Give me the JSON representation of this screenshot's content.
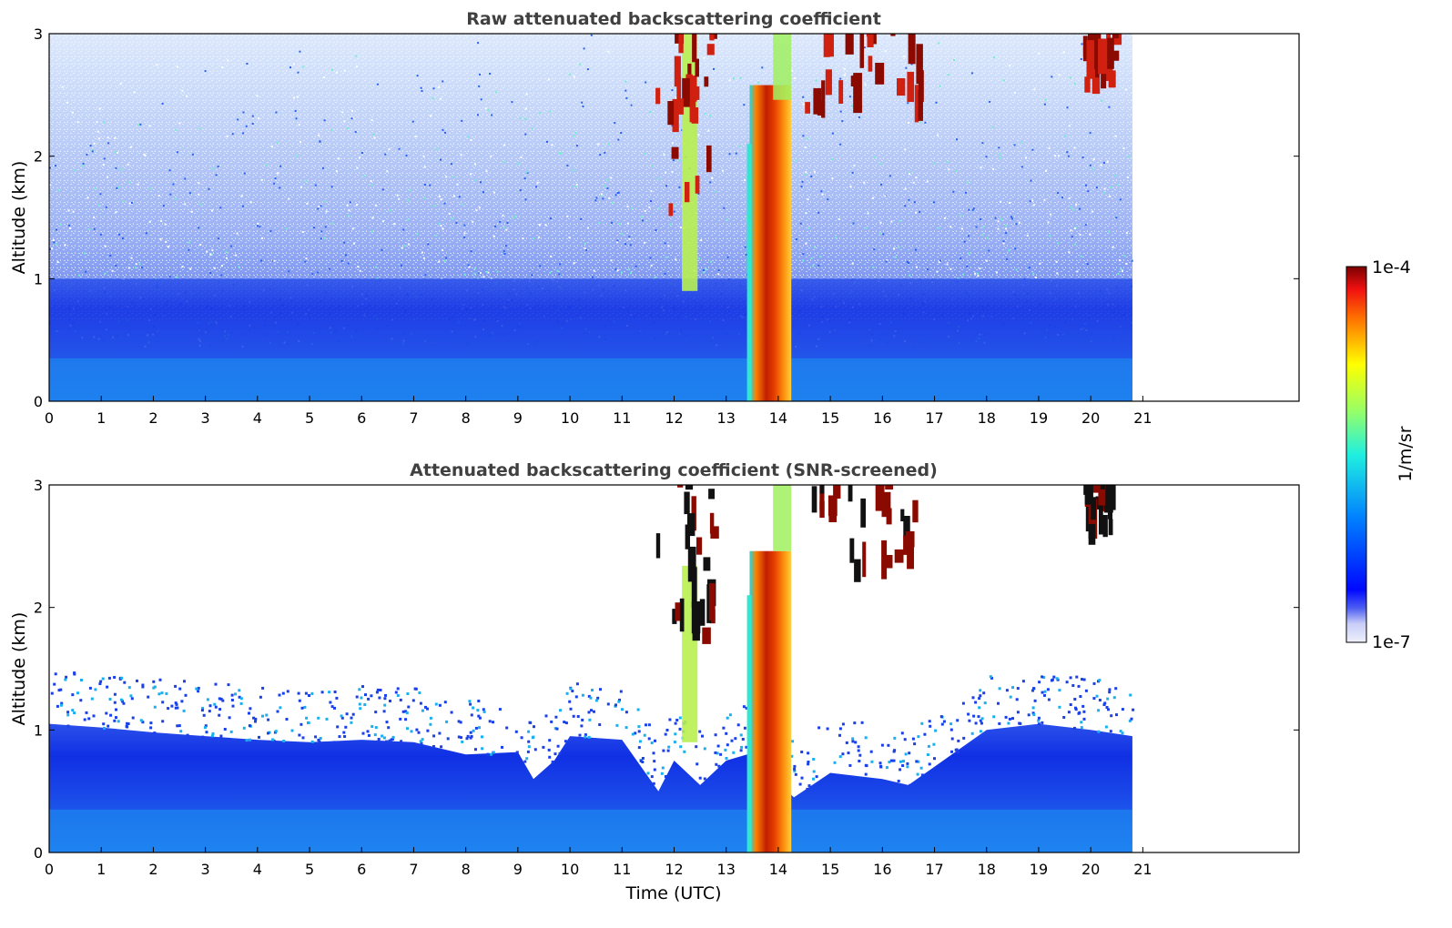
{
  "chart_data": [
    {
      "type": "heatmap",
      "title": "Raw attenuated backscattering coefficient",
      "xlabel": "",
      "ylabel": "Altitude (km)",
      "xlim": [
        0,
        24
      ],
      "ylim": [
        0,
        3
      ],
      "xticks": [
        "0",
        "1",
        "2",
        "3",
        "4",
        "5",
        "6",
        "7",
        "8",
        "9",
        "10",
        "11",
        "12",
        "13",
        "14",
        "15",
        "16",
        "17",
        "18",
        "19",
        "20",
        "21"
      ],
      "yticks": [
        "0",
        "1",
        "2",
        "3"
      ],
      "data_end_time": 20.8,
      "screened": false,
      "features": [
        {
          "kind": "cloud_column",
          "x_start": 13.45,
          "x_end": 14.25,
          "y_top": 3.0,
          "value": "high"
        },
        {
          "kind": "cloud_streak",
          "x_start": 12.15,
          "x_end": 12.45,
          "y_bottom": 0.9,
          "y_top": 3.0,
          "value": "medium"
        },
        {
          "kind": "cirrus",
          "x_start": 11.6,
          "x_end": 12.7,
          "y_bottom": 1.5,
          "y_top": 3.0,
          "value": "high"
        },
        {
          "kind": "cirrus",
          "x_start": 14.5,
          "x_end": 16.7,
          "y_bottom": 2.2,
          "y_top": 3.0,
          "value": "high"
        },
        {
          "kind": "cirrus",
          "x_start": 19.85,
          "x_end": 20.45,
          "y_bottom": 2.5,
          "y_top": 3.0,
          "value": "high"
        },
        {
          "kind": "boundary_layer",
          "x_start": 0,
          "x_end": 20.8,
          "y_top": 1.0,
          "value": "low"
        }
      ]
    },
    {
      "type": "heatmap",
      "title": "Attenuated backscattering coefficient (SNR-screened)",
      "xlabel": "Time (UTC)",
      "ylabel": "Altitude (km)",
      "xlim": [
        0,
        24
      ],
      "ylim": [
        0,
        3
      ],
      "xticks": [
        "0",
        "1",
        "2",
        "3",
        "4",
        "5",
        "6",
        "7",
        "8",
        "9",
        "10",
        "11",
        "12",
        "13",
        "14",
        "15",
        "16",
        "17",
        "18",
        "19",
        "20",
        "21"
      ],
      "yticks": [
        "0",
        "1",
        "2",
        "3"
      ],
      "data_end_time": 20.8,
      "screened": true,
      "bl_top": [
        [
          0,
          1.05
        ],
        [
          1,
          1.02
        ],
        [
          2,
          0.98
        ],
        [
          3,
          0.95
        ],
        [
          4,
          0.92
        ],
        [
          5,
          0.9
        ],
        [
          6,
          0.92
        ],
        [
          7,
          0.9
        ],
        [
          8,
          0.8
        ],
        [
          9,
          0.82
        ],
        [
          9.3,
          0.6
        ],
        [
          9.7,
          0.75
        ],
        [
          10,
          0.95
        ],
        [
          11,
          0.92
        ],
        [
          11.7,
          0.5
        ],
        [
          12,
          0.75
        ],
        [
          12.5,
          0.55
        ],
        [
          13,
          0.75
        ],
        [
          13.4,
          0.8
        ],
        [
          14.3,
          0.45
        ],
        [
          15,
          0.65
        ],
        [
          16,
          0.6
        ],
        [
          16.5,
          0.55
        ],
        [
          17,
          0.7
        ],
        [
          17.5,
          0.85
        ],
        [
          18,
          1.0
        ],
        [
          19,
          1.05
        ],
        [
          20,
          1.0
        ],
        [
          20.8,
          0.95
        ]
      ]
    }
  ],
  "colorbar": {
    "label": "1/m/sr",
    "max_label": "1e-4",
    "min_label": "1e-7"
  }
}
